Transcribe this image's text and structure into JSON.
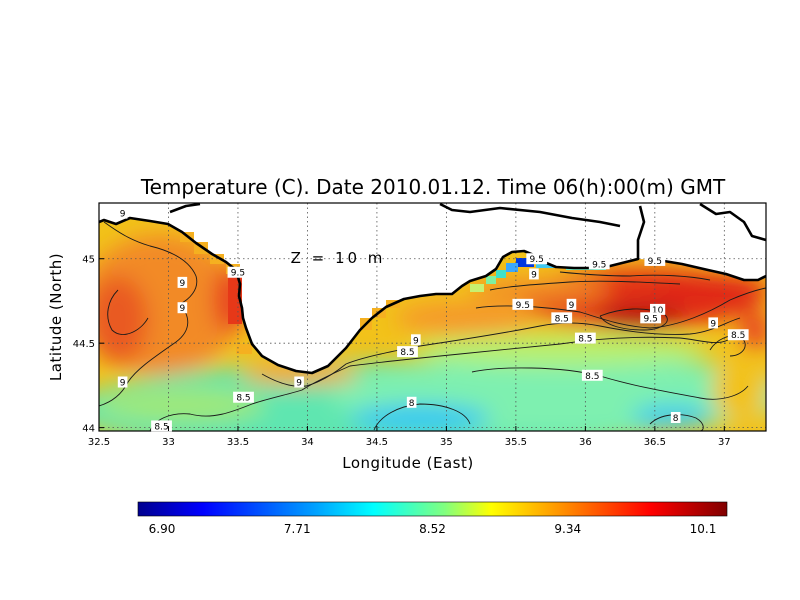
{
  "chart_data": {
    "type": "heatmap",
    "title": "Temperature (C). Date 2010.01.12. Time 06(h):00(m) GMT",
    "annotation": "Z = 10 m",
    "xlabel": "Longitude (East)",
    "ylabel": "Latitude (North)",
    "xlim": [
      32.5,
      37.3
    ],
    "ylim": [
      43.98,
      45.33
    ],
    "x_ticks": [
      32.5,
      33,
      33.5,
      34,
      34.5,
      35,
      35.5,
      36,
      36.5,
      37
    ],
    "y_ticks": [
      44,
      44.5,
      45
    ],
    "x_tick_labels": [
      "32.5",
      "33",
      "33.5",
      "34",
      "34.5",
      "35",
      "35.5",
      "36",
      "36.5",
      "37"
    ],
    "y_tick_labels": [
      "44",
      "44.5",
      "45"
    ],
    "grid": true,
    "colorbar": {
      "min": 6.9,
      "max": 10.1,
      "tick_labels": [
        "6.90",
        "7.71",
        "8.52",
        "9.34",
        "10.1"
      ],
      "colors": [
        "#00008f",
        "#0000ff",
        "#00a0ff",
        "#00ffff",
        "#80ff80",
        "#ffff00",
        "#ff9000",
        "#ff0000",
        "#800000"
      ]
    },
    "contour_labels": [
      {
        "text": "9",
        "lon": 32.67,
        "lat": 45.27
      },
      {
        "text": "9",
        "lon": 33.1,
        "lat": 44.86
      },
      {
        "text": "9",
        "lon": 33.1,
        "lat": 44.71
      },
      {
        "text": "9",
        "lon": 32.67,
        "lat": 44.27
      },
      {
        "text": "9.5",
        "lon": 33.5,
        "lat": 44.92
      },
      {
        "text": "8.5",
        "lon": 32.95,
        "lat": 44.01
      },
      {
        "text": "8.5",
        "lon": 33.54,
        "lat": 44.18
      },
      {
        "text": "9",
        "lon": 33.94,
        "lat": 44.27
      },
      {
        "text": "8.5",
        "lon": 34.72,
        "lat": 44.45
      },
      {
        "text": "9",
        "lon": 34.78,
        "lat": 44.52
      },
      {
        "text": "8",
        "lon": 34.75,
        "lat": 44.15
      },
      {
        "text": "9.5",
        "lon": 35.55,
        "lat": 44.73
      },
      {
        "text": "9",
        "lon": 35.9,
        "lat": 44.73
      },
      {
        "text": "8.5",
        "lon": 35.83,
        "lat": 44.65
      },
      {
        "text": "8.5",
        "lon": 36.0,
        "lat": 44.53
      },
      {
        "text": "8.5",
        "lon": 36.05,
        "lat": 44.31
      },
      {
        "text": "8",
        "lon": 36.65,
        "lat": 44.06
      },
      {
        "text": "9.5",
        "lon": 35.65,
        "lat": 45.0
      },
      {
        "text": "9",
        "lon": 35.63,
        "lat": 44.91
      },
      {
        "text": "9.5",
        "lon": 36.1,
        "lat": 44.97
      },
      {
        "text": "9.5",
        "lon": 36.5,
        "lat": 44.99
      },
      {
        "text": "10",
        "lon": 36.52,
        "lat": 44.7
      },
      {
        "text": "9.5",
        "lon": 36.47,
        "lat": 44.65
      },
      {
        "text": "9",
        "lon": 36.92,
        "lat": 44.62
      },
      {
        "text": "8.5",
        "lon": 37.1,
        "lat": 44.55
      }
    ]
  }
}
